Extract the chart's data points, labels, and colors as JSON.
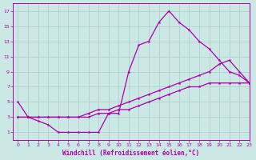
{
  "xlabel": "Windchill (Refroidissement éolien,°C)",
  "background_color": "#cce8e4",
  "grid_color": "#a8cccc",
  "line_color": "#aa00aa",
  "spine_color": "#aa00aa",
  "xlim": [
    -0.5,
    23
  ],
  "ylim": [
    0,
    18
  ],
  "xticks": [
    0,
    1,
    2,
    3,
    4,
    5,
    6,
    7,
    8,
    9,
    10,
    11,
    12,
    13,
    14,
    15,
    16,
    17,
    18,
    19,
    20,
    21,
    22,
    23
  ],
  "yticks": [
    1,
    3,
    5,
    7,
    9,
    11,
    13,
    15,
    17
  ],
  "line1_x": [
    0,
    1,
    2,
    3,
    4,
    5,
    6,
    7,
    8,
    9,
    10,
    11,
    12,
    13,
    14,
    15,
    16,
    17,
    18,
    19,
    20,
    21,
    22,
    23
  ],
  "line1_y": [
    5,
    3,
    2.5,
    2,
    1,
    1,
    1,
    1,
    1,
    3.5,
    3.5,
    9,
    12.5,
    13,
    15.5,
    17,
    15.5,
    14.5,
    13,
    12,
    10.5,
    9,
    8.5,
    7.5
  ],
  "line2_x": [
    0,
    1,
    2,
    3,
    4,
    5,
    6,
    7,
    8,
    9,
    10,
    11,
    12,
    13,
    14,
    15,
    16,
    17,
    18,
    19,
    20,
    21,
    22,
    23
  ],
  "line2_y": [
    3,
    3,
    3,
    3,
    3,
    3,
    3,
    3.5,
    4,
    4,
    4.5,
    5,
    5.5,
    6,
    6.5,
    7,
    7.5,
    8,
    8.5,
    9,
    10,
    10.5,
    9,
    7.5
  ],
  "line3_x": [
    0,
    1,
    2,
    3,
    4,
    5,
    6,
    7,
    8,
    9,
    10,
    11,
    12,
    13,
    14,
    15,
    16,
    17,
    18,
    19,
    20,
    21,
    22,
    23
  ],
  "line3_y": [
    3,
    3,
    3,
    3,
    3,
    3,
    3,
    3,
    3.5,
    3.5,
    4,
    4,
    4.5,
    5,
    5.5,
    6,
    6.5,
    7,
    7,
    7.5,
    7.5,
    7.5,
    7.5,
    7.5
  ]
}
